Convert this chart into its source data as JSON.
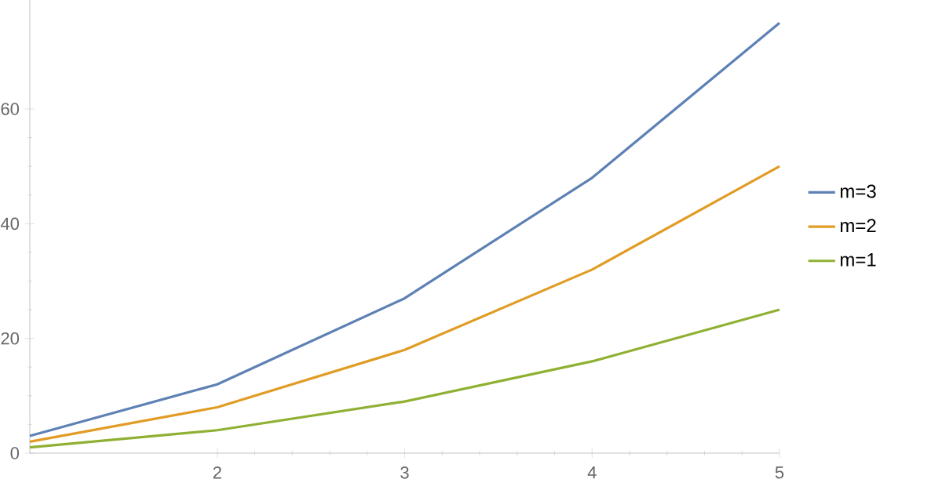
{
  "chart_data": {
    "type": "line",
    "x": [
      1,
      2,
      3,
      4,
      5
    ],
    "series": [
      {
        "name": "m=3",
        "color": "#5e81b5",
        "values": [
          3,
          12,
          27,
          48,
          75
        ]
      },
      {
        "name": "m=2",
        "color": "#e19c24",
        "values": [
          2,
          8,
          18,
          32,
          50
        ]
      },
      {
        "name": "m=1",
        "color": "#8fb032",
        "values": [
          1,
          4,
          9,
          16,
          25
        ]
      }
    ],
    "xlim": [
      1,
      5
    ],
    "ylim": [
      0,
      79
    ],
    "xticks": [
      2,
      3,
      4,
      5
    ],
    "yticks": [
      0,
      20,
      40,
      60
    ],
    "legend": "right",
    "marker": "none",
    "line_style": "solid"
  }
}
